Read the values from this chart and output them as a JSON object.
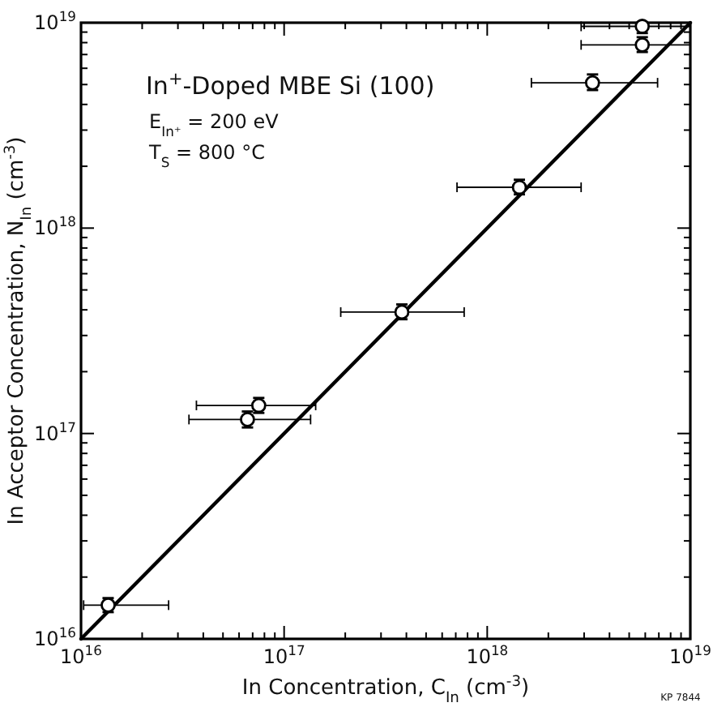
{
  "chart_data": {
    "type": "scatter",
    "log": "xy",
    "grid": false,
    "xlabel": "In Concentration, C$_{In}$  (cm$^{-3}$)",
    "ylabel": "In Acceptor Concentration, N$_{In}$  (cm$^{-3}$)",
    "annotations": [
      "In$^{+}$-Doped MBE Si (100)",
      "E$_{In⁺}$ = 200 eV",
      "T$_{S}$ = 800 °C",
      "KP 7844"
    ],
    "xlim": [
      1e+16,
      1e+19
    ],
    "ylim": [
      1e+16,
      1e+19
    ],
    "xticks": [
      {
        "value": 1e+16,
        "label": "10$^{16}$"
      },
      {
        "value": 2e+16,
        "label": null
      },
      {
        "value": 3e+16,
        "label": null
      },
      {
        "value": 4e+16,
        "label": null
      },
      {
        "value": 5e+16,
        "label": null
      },
      {
        "value": 6e+16,
        "label": null
      },
      {
        "value": 7e+16,
        "label": null
      },
      {
        "value": 8e+16,
        "label": null
      },
      {
        "value": 9e+16,
        "label": null
      },
      {
        "value": 1e+17,
        "label": "10$^{17}$"
      },
      {
        "value": 2e+17,
        "label": null
      },
      {
        "value": 3e+17,
        "label": null
      },
      {
        "value": 4e+17,
        "label": null
      },
      {
        "value": 5e+17,
        "label": null
      },
      {
        "value": 6e+17,
        "label": null
      },
      {
        "value": 7e+17,
        "label": null
      },
      {
        "value": 8e+17,
        "label": null
      },
      {
        "value": 9e+17,
        "label": null
      },
      {
        "value": 1e+18,
        "label": "10$^{18}$"
      },
      {
        "value": 2e+18,
        "label": null
      },
      {
        "value": 3e+18,
        "label": null
      },
      {
        "value": 4e+18,
        "label": null
      },
      {
        "value": 5e+18,
        "label": null
      },
      {
        "value": 6e+18,
        "label": null
      },
      {
        "value": 7e+18,
        "label": null
      },
      {
        "value": 8e+18,
        "label": null
      },
      {
        "value": 9e+18,
        "label": null
      },
      {
        "value": 1e+19,
        "label": "10$^{19}$"
      }
    ],
    "yticks": [
      {
        "value": 1e+16,
        "label": "10$^{16}$"
      },
      {
        "value": 2e+16,
        "label": null
      },
      {
        "value": 3e+16,
        "label": null
      },
      {
        "value": 4e+16,
        "label": null
      },
      {
        "value": 5e+16,
        "label": null
      },
      {
        "value": 6e+16,
        "label": null
      },
      {
        "value": 7e+16,
        "label": null
      },
      {
        "value": 8e+16,
        "label": null
      },
      {
        "value": 9e+16,
        "label": null
      },
      {
        "value": 1e+17,
        "label": "10$^{17}$"
      },
      {
        "value": 2e+17,
        "label": null
      },
      {
        "value": 3e+17,
        "label": null
      },
      {
        "value": 4e+17,
        "label": null
      },
      {
        "value": 5e+17,
        "label": null
      },
      {
        "value": 6e+17,
        "label": null
      },
      {
        "value": 7e+17,
        "label": null
      },
      {
        "value": 8e+17,
        "label": null
      },
      {
        "value": 9e+17,
        "label": null
      },
      {
        "value": 1e+18,
        "label": "10$^{18}$"
      },
      {
        "value": 2e+18,
        "label": null
      },
      {
        "value": 3e+18,
        "label": null
      },
      {
        "value": 4e+18,
        "label": null
      },
      {
        "value": 5e+18,
        "label": null
      },
      {
        "value": 6e+18,
        "label": null
      },
      {
        "value": 7e+18,
        "label": null
      },
      {
        "value": 8e+18,
        "label": null
      },
      {
        "value": 9e+18,
        "label": null
      },
      {
        "value": 1e+19,
        "label": "10$^{19}$"
      }
    ],
    "series": [
      {
        "marker": "circle",
        "color": "#000000",
        "x": [
          1.36e+16,
          6.6e+16,
          7.5e+16,
          3.8e+17,
          1.44e+18,
          3.3e+18,
          5.8e+18,
          5.8e+18
        ],
        "values": [
          1.46e+16,
          1.17e+17,
          1.37e+17,
          3.9e+17,
          1.58e+18,
          5.1e+18,
          7.8e+18,
          9.6e+18
        ],
        "xerrors": [
          [
            1.03e+16,
            2.7e+16
          ],
          [
            3.4e+16,
            1.35e+17
          ],
          [
            3.7e+16,
            1.43e+17
          ],
          [
            1.9e+17,
            7.7e+17
          ],
          [
            7.1e+17,
            2.9e+18
          ],
          [
            1.65e+18,
            6.9e+18
          ],
          [
            2.9e+18,
            1e+19
          ],
          [
            2.9e+18,
            1e+19
          ]
        ],
        "errors": [
          [
            1.35e+16,
            1.58e+16
          ],
          [
            1.07e+17,
            1.28e+17
          ],
          [
            1.26e+17,
            1.49e+17
          ],
          [
            3.6e+17,
            4.25e+17
          ],
          [
            1.46e+18,
            1.72e+18
          ],
          [
            4.7e+18,
            5.6e+18
          ],
          [
            7.2e+18,
            8.5e+18
          ],
          [
            8.9e+18,
            1e+19
          ]
        ]
      },
      {
        "type": "line",
        "color": "#000000",
        "x": [
          1e+16,
          1e+19
        ],
        "values": [
          1e+16,
          1e+19
        ]
      }
    ]
  }
}
